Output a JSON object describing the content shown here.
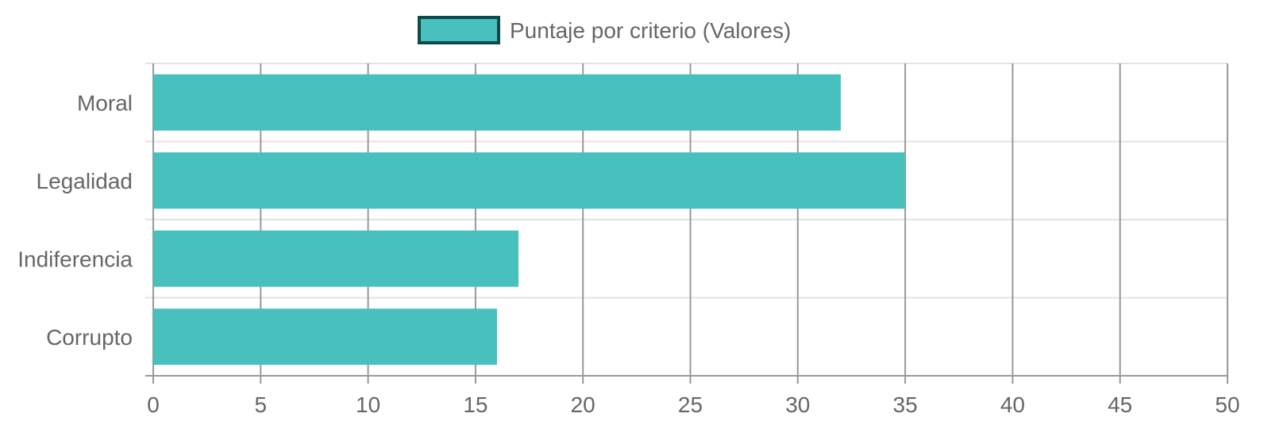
{
  "chart_data": {
    "type": "bar",
    "orientation": "horizontal",
    "categories": [
      "Moral",
      "Legalidad",
      "Indiferencia",
      "Corrupto"
    ],
    "series": [
      {
        "name": "Puntaje por criterio (Valores)",
        "values": [
          32,
          35,
          17,
          16
        ],
        "color": "#48c0bd",
        "border_color": "#0f4a4a"
      }
    ],
    "xlim": [
      0,
      50
    ],
    "x_ticks": [
      0,
      5,
      10,
      15,
      20,
      25,
      30,
      35,
      40,
      45,
      50
    ],
    "grid": true,
    "legend_position": "top"
  },
  "colors": {
    "text": "#666666",
    "vertical_grid": "#999999",
    "horizontal_grid": "#e3e3e3",
    "axis": "#999999"
  }
}
